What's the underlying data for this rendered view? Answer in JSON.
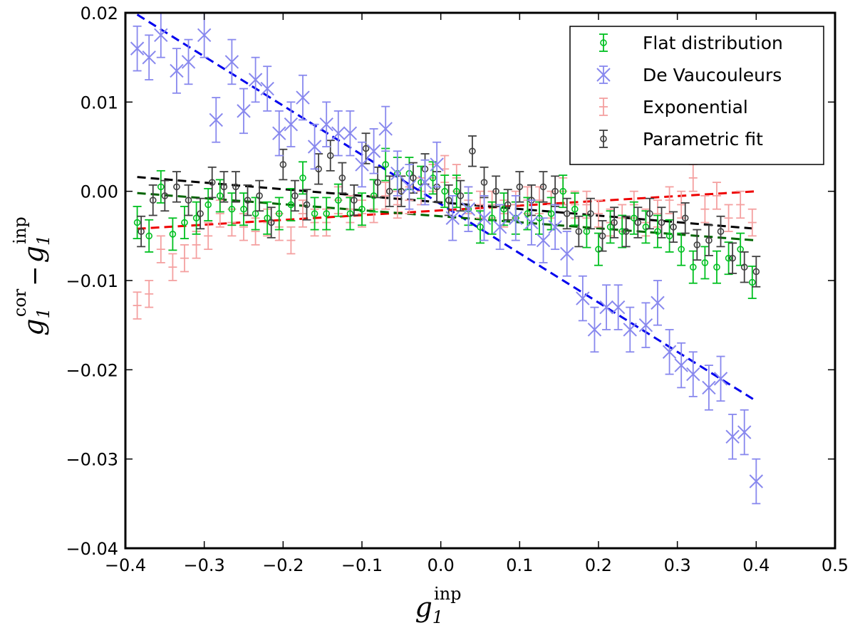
{
  "chart_data": {
    "type": "scatter",
    "xlim": [
      -0.4,
      0.5
    ],
    "ylim": [
      -0.04,
      0.02
    ],
    "xticks": [
      -0.4,
      -0.3,
      -0.2,
      -0.1,
      0.0,
      0.1,
      0.2,
      0.3,
      0.4,
      0.5
    ],
    "xtick_labels": [
      "−0.4",
      "−0.3",
      "−0.2",
      "−0.1",
      "0.0",
      "0.1",
      "0.2",
      "0.3",
      "0.4",
      "0.5"
    ],
    "yticks": [
      0.02,
      0.01,
      0.0,
      -0.01,
      -0.02,
      -0.03,
      -0.04
    ],
    "ytick_labels": [
      "0.02",
      "0.01",
      "0.00",
      "−0.01",
      "−0.02",
      "−0.03",
      "−0.04"
    ],
    "xlabel": {
      "base": "g",
      "sub": "1",
      "sup": "inp"
    },
    "ylabel": {
      "base1": "g",
      "sub1": "1",
      "sup1": "cor",
      "minus": "−",
      "base2": "g",
      "sub2": "1",
      "sup2": "inp"
    },
    "legend_position": "top-right",
    "series": [
      {
        "name": "Flat distribution",
        "color": "#00c020",
        "marker": "circle",
        "x": [
          -0.385,
          -0.37,
          -0.355,
          -0.34,
          -0.325,
          -0.31,
          -0.295,
          -0.28,
          -0.265,
          -0.25,
          -0.235,
          -0.22,
          -0.205,
          -0.19,
          -0.175,
          -0.16,
          -0.145,
          -0.13,
          -0.115,
          -0.1,
          -0.085,
          -0.07,
          -0.055,
          -0.04,
          -0.025,
          -0.01,
          0.005,
          0.02,
          0.035,
          0.05,
          0.065,
          0.08,
          0.095,
          0.11,
          0.125,
          0.14,
          0.155,
          0.17,
          0.185,
          0.2,
          0.215,
          0.23,
          0.245,
          0.26,
          0.275,
          0.29,
          0.305,
          0.32,
          0.335,
          0.35,
          0.365,
          0.38,
          0.395
        ],
        "y": [
          -0.0035,
          -0.005,
          0.0005,
          -0.0048,
          -0.0035,
          -0.003,
          -0.0015,
          -0.0005,
          -0.002,
          -0.002,
          -0.0025,
          -0.003,
          -0.0025,
          -0.0015,
          0.0015,
          -0.0025,
          -0.0025,
          -0.001,
          -0.0025,
          -0.002,
          -0.0005,
          0.003,
          0.002,
          0.002,
          0.001,
          0.0015,
          0.0,
          0.0,
          -0.002,
          -0.004,
          -0.003,
          -0.002,
          -0.003,
          -0.0025,
          -0.003,
          -0.0025,
          0.0,
          -0.002,
          -0.0045,
          -0.0065,
          -0.004,
          -0.0045,
          -0.003,
          -0.004,
          -0.0045,
          -0.005,
          -0.0065,
          -0.0085,
          -0.008,
          -0.0085,
          -0.0075,
          -0.0065,
          -0.0102
        ],
        "err": 0.0018
      },
      {
        "name": "De Vaucouleurs",
        "color": "#8888ee",
        "marker": "x",
        "x": [
          -0.385,
          -0.37,
          -0.355,
          -0.335,
          -0.32,
          -0.3,
          -0.285,
          -0.265,
          -0.25,
          -0.235,
          -0.22,
          -0.205,
          -0.19,
          -0.175,
          -0.16,
          -0.145,
          -0.13,
          -0.115,
          -0.1,
          -0.085,
          -0.07,
          -0.055,
          -0.04,
          -0.02,
          -0.005,
          0.015,
          0.035,
          0.055,
          0.075,
          0.095,
          0.115,
          0.13,
          0.145,
          0.16,
          0.18,
          0.195,
          0.21,
          0.225,
          0.24,
          0.26,
          0.275,
          0.29,
          0.305,
          0.32,
          0.34,
          0.355,
          0.37,
          0.385,
          0.4
        ],
        "y": [
          0.016,
          0.015,
          0.0175,
          0.0135,
          0.0145,
          0.0175,
          0.008,
          0.0145,
          0.009,
          0.0125,
          0.0115,
          0.0065,
          0.0075,
          0.0105,
          0.005,
          0.0075,
          0.0065,
          0.0065,
          0.003,
          0.0045,
          0.007,
          0.002,
          0.0005,
          0.001,
          0.003,
          -0.003,
          -0.002,
          -0.003,
          -0.004,
          -0.003,
          -0.0035,
          -0.0055,
          -0.004,
          -0.007,
          -0.012,
          -0.0155,
          -0.013,
          -0.013,
          -0.0155,
          -0.015,
          -0.0125,
          -0.018,
          -0.0195,
          -0.0205,
          -0.022,
          -0.021,
          -0.0275,
          -0.027,
          -0.0325
        ],
        "err": 0.0025
      },
      {
        "name": "Exponential",
        "color": "#f4a0a0",
        "marker": "plus",
        "x": [
          -0.385,
          -0.37,
          -0.355,
          -0.34,
          -0.325,
          -0.31,
          -0.295,
          -0.28,
          -0.265,
          -0.25,
          -0.235,
          -0.22,
          -0.205,
          -0.19,
          -0.175,
          -0.16,
          -0.145,
          -0.13,
          -0.115,
          -0.1,
          -0.085,
          -0.07,
          -0.055,
          -0.04,
          -0.025,
          -0.01,
          0.005,
          0.02,
          0.035,
          0.05,
          0.065,
          0.08,
          0.095,
          0.11,
          0.125,
          0.14,
          0.155,
          0.17,
          0.185,
          0.2,
          0.215,
          0.23,
          0.245,
          0.26,
          0.275,
          0.29,
          0.305,
          0.32,
          0.335,
          0.35,
          0.365,
          0.38,
          0.395
        ],
        "y": [
          -0.0128,
          -0.0115,
          -0.0065,
          -0.0085,
          -0.0075,
          -0.006,
          -0.005,
          -0.0025,
          -0.0035,
          -0.004,
          -0.0045,
          -0.0035,
          -0.004,
          -0.0055,
          -0.0025,
          -0.0035,
          -0.0035,
          -0.001,
          -0.002,
          -0.0025,
          -0.002,
          -0.0005,
          -0.0015,
          -0.001,
          0.0,
          0.0015,
          0.0025,
          0.0015,
          -0.001,
          -0.0015,
          -0.0015,
          -0.0025,
          -0.0015,
          -0.001,
          -0.001,
          -0.0015,
          0.0,
          -0.0015,
          -0.0015,
          -0.0025,
          -0.0035,
          -0.003,
          -0.0015,
          -0.0035,
          -0.0025,
          -0.001,
          -0.0015,
          0.0015,
          -0.002,
          -0.0005,
          -0.003,
          -0.0015,
          -0.0035
        ],
        "err": 0.0015
      },
      {
        "name": "Parametric fit",
        "color": "#404040",
        "marker": "circle",
        "x": [
          -0.38,
          -0.365,
          -0.35,
          -0.335,
          -0.32,
          -0.305,
          -0.29,
          -0.275,
          -0.26,
          -0.245,
          -0.23,
          -0.215,
          -0.2,
          -0.185,
          -0.17,
          -0.155,
          -0.14,
          -0.125,
          -0.11,
          -0.095,
          -0.08,
          -0.065,
          -0.05,
          -0.035,
          -0.02,
          -0.005,
          0.01,
          0.025,
          0.04,
          0.055,
          0.07,
          0.085,
          0.1,
          0.115,
          0.13,
          0.145,
          0.16,
          0.175,
          0.19,
          0.205,
          0.22,
          0.235,
          0.25,
          0.265,
          0.28,
          0.295,
          0.31,
          0.325,
          0.34,
          0.355,
          0.37,
          0.385,
          0.4
        ],
        "y": [
          -0.0045,
          -0.001,
          -0.0005,
          0.0005,
          -0.001,
          -0.0025,
          0.001,
          0.0005,
          0.0005,
          -0.001,
          -0.0005,
          -0.0035,
          0.003,
          -0.0005,
          -0.0015,
          0.0025,
          0.004,
          0.0015,
          -0.001,
          0.0048,
          0.001,
          0.0,
          0.0,
          0.0015,
          0.0025,
          0.0005,
          -0.001,
          -0.0005,
          0.0045,
          0.001,
          0.0,
          -0.0015,
          0.0005,
          -0.001,
          0.0005,
          0.0,
          -0.0025,
          -0.0045,
          -0.0025,
          -0.005,
          -0.0035,
          -0.0045,
          -0.0035,
          -0.0025,
          -0.0035,
          -0.004,
          -0.003,
          -0.006,
          -0.0055,
          -0.0045,
          -0.0075,
          -0.0085,
          -0.009
        ],
        "err": 0.0017
      }
    ],
    "fit_lines": [
      {
        "name": "De Vaucouleurs fit",
        "color": "#0000ee",
        "x": [
          -0.385,
          0.4
        ],
        "y": [
          0.0198,
          -0.0235
        ]
      },
      {
        "name": "Exponential fit",
        "color": "#ee0000",
        "x": [
          -0.385,
          0.4
        ],
        "y": [
          -0.0042,
          0.0
        ]
      },
      {
        "name": "Flat distribution fit",
        "color": "#006400",
        "x": [
          -0.385,
          0.4
        ],
        "y": [
          -0.0002,
          -0.0055
        ]
      },
      {
        "name": "Parametric fit line",
        "color": "#000000",
        "x": [
          -0.385,
          0.4
        ],
        "y": [
          0.0016,
          -0.0042
        ]
      }
    ]
  }
}
